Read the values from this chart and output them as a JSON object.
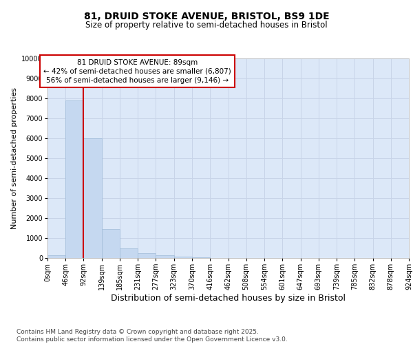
{
  "title_line1": "81, DRUID STOKE AVENUE, BRISTOL, BS9 1DE",
  "title_line2": "Size of property relative to semi-detached houses in Bristol",
  "xlabel": "Distribution of semi-detached houses by size in Bristol",
  "ylabel": "Number of semi-detached properties",
  "bar_values": [
    150,
    7900,
    6000,
    1450,
    500,
    230,
    130,
    70,
    30,
    10,
    5,
    3,
    2,
    1,
    1,
    0,
    0,
    0,
    0,
    0
  ],
  "bin_edges": [
    0,
    46,
    92,
    139,
    185,
    231,
    277,
    323,
    370,
    416,
    462,
    508,
    554,
    601,
    647,
    693,
    739,
    785,
    832,
    878,
    924
  ],
  "tick_labels": [
    "0sqm",
    "46sqm",
    "92sqm",
    "139sqm",
    "185sqm",
    "231sqm",
    "277sqm",
    "323sqm",
    "370sqm",
    "416sqm",
    "462sqm",
    "508sqm",
    "554sqm",
    "601sqm",
    "647sqm",
    "693sqm",
    "739sqm",
    "785sqm",
    "832sqm",
    "878sqm",
    "924sqm"
  ],
  "bar_color": "#c5d8f0",
  "bar_edge_color": "#a0bcd8",
  "vline_x": 92,
  "vline_color": "#cc0000",
  "annotation_title": "81 DRUID STOKE AVENUE: 89sqm",
  "annotation_line1": "← 42% of semi-detached houses are smaller (6,807)",
  "annotation_line2": "56% of semi-detached houses are larger (9,146) →",
  "annotation_box_color": "#cc0000",
  "annotation_text_color": "#000000",
  "annotation_bg": "#ffffff",
  "ylim": [
    0,
    10000
  ],
  "yticks": [
    0,
    1000,
    2000,
    3000,
    4000,
    5000,
    6000,
    7000,
    8000,
    9000,
    10000
  ],
  "grid_color": "#c8d4e8",
  "bg_color": "#dce8f8",
  "footer_line1": "Contains HM Land Registry data © Crown copyright and database right 2025.",
  "footer_line2": "Contains public sector information licensed under the Open Government Licence v3.0.",
  "title_fontsize": 10,
  "subtitle_fontsize": 8.5,
  "axis_label_fontsize": 8,
  "tick_fontsize": 7,
  "footer_fontsize": 6.5
}
